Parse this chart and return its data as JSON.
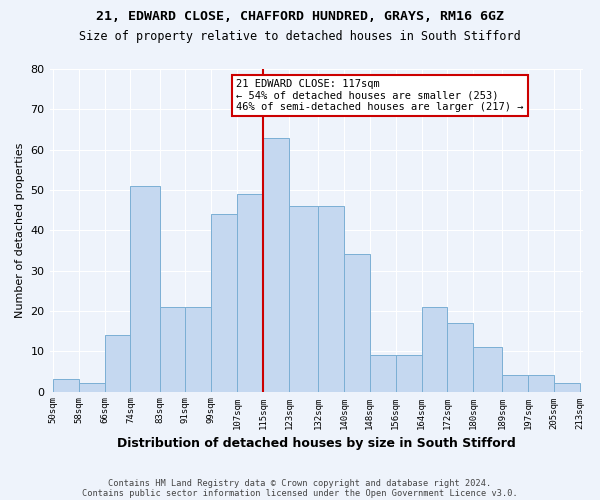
{
  "title1": "21, EDWARD CLOSE, CHAFFORD HUNDRED, GRAYS, RM16 6GZ",
  "title2": "Size of property relative to detached houses in South Stifford",
  "xlabel": "Distribution of detached houses by size in South Stifford",
  "ylabel": "Number of detached properties",
  "bar_edges": [
    50,
    58,
    66,
    74,
    83,
    91,
    99,
    107,
    115,
    123,
    132,
    140,
    148,
    156,
    164,
    172,
    180,
    189,
    197,
    205,
    213
  ],
  "bar_heights": [
    3,
    2,
    14,
    51,
    21,
    21,
    44,
    49,
    63,
    46,
    46,
    34,
    9,
    9,
    21,
    17,
    11,
    4,
    4,
    2
  ],
  "tick_labels": [
    "50sqm",
    "58sqm",
    "66sqm",
    "74sqm",
    "83sqm",
    "91sqm",
    "99sqm",
    "107sqm",
    "115sqm",
    "123sqm",
    "132sqm",
    "140sqm",
    "148sqm",
    "156sqm",
    "164sqm",
    "172sqm",
    "180sqm",
    "189sqm",
    "197sqm",
    "205sqm",
    "213sqm"
  ],
  "bar_color": "#c5d8f0",
  "bar_edge_color": "#7bafd4",
  "property_line_x": 115,
  "annotation_title": "21 EDWARD CLOSE: 117sqm",
  "annotation_line1": "← 54% of detached houses are smaller (253)",
  "annotation_line2": "46% of semi-detached houses are larger (217) →",
  "annotation_box_color": "#ffffff",
  "annotation_box_edge": "#cc0000",
  "red_line_color": "#cc0000",
  "ylim": [
    0,
    80
  ],
  "yticks": [
    0,
    10,
    20,
    30,
    40,
    50,
    60,
    70,
    80
  ],
  "footer1": "Contains HM Land Registry data © Crown copyright and database right 2024.",
  "footer2": "Contains public sector information licensed under the Open Government Licence v3.0.",
  "bg_color": "#eef3fb",
  "plot_bg_color": "#eef3fb"
}
